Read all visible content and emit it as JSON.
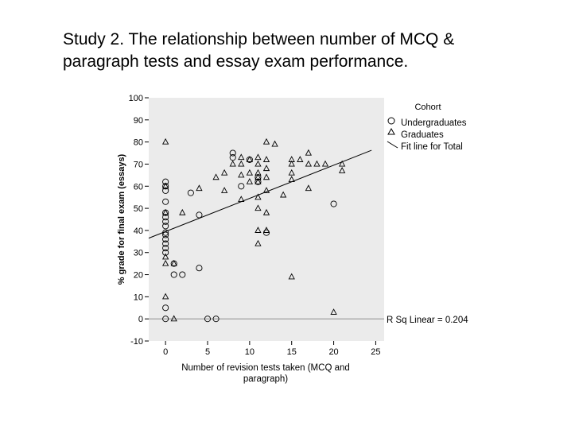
{
  "slide": {
    "title_line1": "Study 2. The relationship between number of MCQ &",
    "title_line2": "paragraph tests and essay exam performance."
  },
  "chart_data": {
    "type": "scatter",
    "xlabel_line1": "Number of revision tests taken (MCQ and",
    "xlabel_line2": "paragraph)",
    "ylabel": "% grade for final exam (essays)",
    "xlim": [
      -2,
      26
    ],
    "ylim": [
      -10,
      100
    ],
    "xticks": [
      0,
      5,
      10,
      15,
      20,
      25
    ],
    "yticks": [
      -10,
      0,
      10,
      20,
      30,
      40,
      50,
      60,
      70,
      80,
      90,
      100
    ],
    "legend": {
      "title": "Cohort",
      "position": "right",
      "entries": [
        {
          "label": "Undergraduates",
          "marker": "circle"
        },
        {
          "label": "Graduates",
          "marker": "triangle"
        },
        {
          "label": "Fit line for Total",
          "marker": "line"
        }
      ]
    },
    "fit_line": {
      "label": "Fit line for Total",
      "intercept": 39.5,
      "slope": 1.5
    },
    "reference_line": {
      "y": 0
    },
    "annotation": "R Sq Linear = 0.204",
    "colors": {
      "background": "#ebebeb",
      "marker": "#000000",
      "reference": "#9a9a9a"
    },
    "series": [
      {
        "name": "Undergraduates",
        "marker": "circle",
        "points": [
          [
            0,
            62
          ],
          [
            0,
            60
          ],
          [
            0,
            58
          ],
          [
            0,
            53
          ],
          [
            0,
            48
          ],
          [
            0,
            46
          ],
          [
            0,
            44
          ],
          [
            0,
            42
          ],
          [
            0,
            39
          ],
          [
            0,
            38
          ],
          [
            0,
            36
          ],
          [
            0,
            34
          ],
          [
            0,
            32
          ],
          [
            0,
            30
          ],
          [
            0,
            5
          ],
          [
            0,
            0
          ],
          [
            1,
            25
          ],
          [
            1,
            20
          ],
          [
            2,
            20
          ],
          [
            3,
            57
          ],
          [
            4,
            47
          ],
          [
            4,
            23
          ],
          [
            5,
            0
          ],
          [
            6,
            0
          ],
          [
            8,
            75
          ],
          [
            8,
            73
          ],
          [
            9,
            60
          ],
          [
            10,
            72
          ],
          [
            11,
            64
          ],
          [
            11,
            62
          ],
          [
            12,
            39
          ],
          [
            20,
            52
          ]
        ]
      },
      {
        "name": "Graduates",
        "marker": "triangle",
        "points": [
          [
            0,
            80
          ],
          [
            0,
            60
          ],
          [
            0,
            48
          ],
          [
            0,
            28
          ],
          [
            0,
            25
          ],
          [
            0,
            10
          ],
          [
            1,
            25
          ],
          [
            1,
            0
          ],
          [
            2,
            48
          ],
          [
            4,
            59
          ],
          [
            6,
            64
          ],
          [
            7,
            66
          ],
          [
            7,
            58
          ],
          [
            8,
            70
          ],
          [
            9,
            73
          ],
          [
            9,
            70
          ],
          [
            9,
            65
          ],
          [
            9,
            54
          ],
          [
            10,
            72
          ],
          [
            10,
            66
          ],
          [
            10,
            62
          ],
          [
            11,
            73
          ],
          [
            11,
            70
          ],
          [
            11,
            66
          ],
          [
            11,
            64
          ],
          [
            11,
            62
          ],
          [
            11,
            55
          ],
          [
            11,
            50
          ],
          [
            11,
            40
          ],
          [
            11,
            34
          ],
          [
            12,
            80
          ],
          [
            12,
            72
          ],
          [
            12,
            68
          ],
          [
            12,
            64
          ],
          [
            12,
            58
          ],
          [
            12,
            48
          ],
          [
            12,
            40
          ],
          [
            13,
            79
          ],
          [
            14,
            56
          ],
          [
            15,
            72
          ],
          [
            15,
            70
          ],
          [
            15,
            66
          ],
          [
            15,
            63
          ],
          [
            15,
            19
          ],
          [
            16,
            72
          ],
          [
            17,
            75
          ],
          [
            17,
            70
          ],
          [
            17,
            59
          ],
          [
            18,
            70
          ],
          [
            19,
            70
          ],
          [
            20,
            3
          ],
          [
            21,
            70
          ],
          [
            21,
            67
          ]
        ]
      }
    ]
  }
}
